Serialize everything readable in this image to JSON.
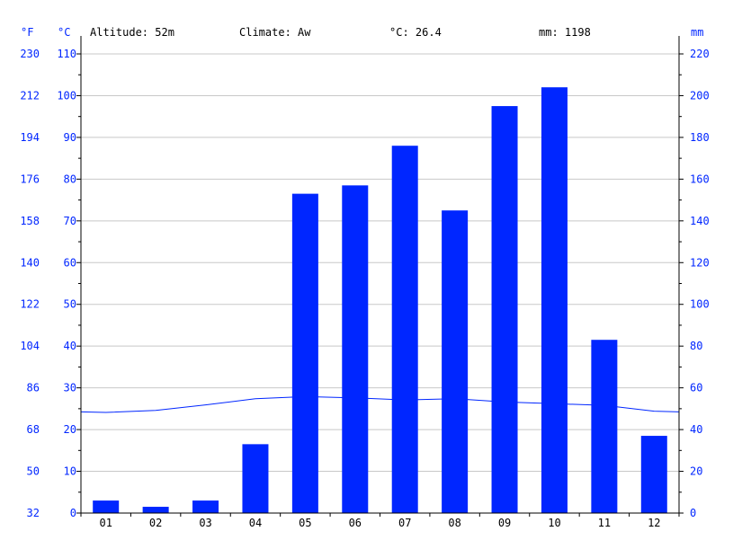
{
  "header": {
    "altitude": "Altitude: 52m",
    "climate": "Climate: Aw",
    "temp": "°C: 26.4",
    "precip": "mm: 1198"
  },
  "units": {
    "fahrenheit": "°F",
    "celsius": "°C",
    "mm": "mm"
  },
  "colors": {
    "bar": "#0026ff",
    "line": "#0026ff",
    "axis_label": "#0026ff",
    "grid": "#c8c8c8",
    "axis": "#000000"
  },
  "chart_data": {
    "type": "bar",
    "categories": [
      "01",
      "02",
      "03",
      "04",
      "05",
      "06",
      "07",
      "08",
      "09",
      "10",
      "11",
      "12"
    ],
    "series": [
      {
        "type": "bar",
        "axis": "mm",
        "values": [
          6,
          3,
          6,
          33,
          153,
          157,
          176,
          145,
          195,
          204,
          83,
          37
        ]
      },
      {
        "type": "line",
        "axis": "celsius",
        "values": [
          24.1,
          24.6,
          25.9,
          27.4,
          27.9,
          27.6,
          27.1,
          27.4,
          26.6,
          26.2,
          25.8,
          24.4
        ]
      }
    ],
    "celsius_ticks": [
      "0",
      "10",
      "20",
      "30",
      "40",
      "50",
      "60",
      "70",
      "80",
      "90",
      "100",
      "110"
    ],
    "fahrenheit_ticks": [
      "32",
      "50",
      "68",
      "86",
      "104",
      "122",
      "140",
      "158",
      "176",
      "194",
      "212",
      "230"
    ],
    "mm_ticks": [
      "0",
      "20",
      "40",
      "60",
      "80",
      "100",
      "120",
      "140",
      "160",
      "180",
      "200",
      "220"
    ],
    "celsius_range": [
      0,
      110
    ],
    "mm_range": [
      0,
      220
    ],
    "grid": true
  }
}
